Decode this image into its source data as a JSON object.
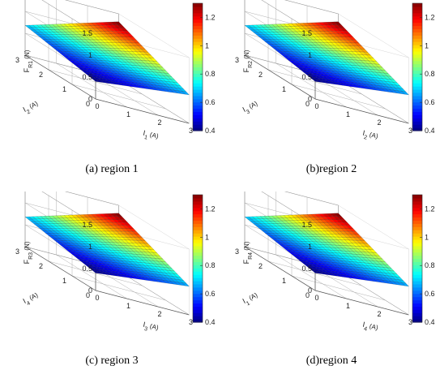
{
  "chart_data": [
    {
      "type": "surface",
      "caption": "(a) region 1",
      "zlabel": {
        "main": "F",
        "sub": "R1",
        "unit": " (N)"
      },
      "xlabel": {
        "main": "I",
        "sub": "1",
        "unit": " (A)"
      },
      "ylabel": {
        "main": "I",
        "sub": "2",
        "unit": " (A)"
      },
      "x_range": [
        0,
        3
      ],
      "y_range": [
        0,
        3
      ],
      "z_range": [
        0,
        1.5
      ],
      "x_ticks": [
        "0",
        "1",
        "2",
        "3"
      ],
      "y_ticks": [
        "0",
        "1",
        "2",
        "3"
      ],
      "z_ticks": [
        "0",
        "0.5",
        "1",
        "1.5"
      ],
      "corner_values": {
        "x0_y0": 0.4,
        "x3_y0": 0.65,
        "x0_y3": 0.68,
        "x3_y3": 1.32
      },
      "colorbar": {
        "range": [
          0.4,
          1.3
        ],
        "ticks": [
          "0.4",
          "0.6",
          "0.8",
          "1",
          "1.2"
        ],
        "colormap": "jet"
      },
      "grid": true
    },
    {
      "type": "surface",
      "caption": "(b)region 2",
      "zlabel": {
        "main": "F",
        "sub": "R2",
        "unit": " (N)"
      },
      "xlabel": {
        "main": "I",
        "sub": "2",
        "unit": " (A)"
      },
      "ylabel": {
        "main": "I",
        "sub": "3",
        "unit": " (A)"
      },
      "x_range": [
        0,
        3
      ],
      "y_range": [
        0,
        3
      ],
      "z_range": [
        0,
        1.5
      ],
      "x_ticks": [
        "0",
        "1",
        "2",
        "3"
      ],
      "y_ticks": [
        "0",
        "1",
        "2",
        "3"
      ],
      "z_ticks": [
        "0",
        "0.5",
        "1",
        "1.5"
      ],
      "corner_values": {
        "x0_y0": 0.4,
        "x3_y0": 0.65,
        "x0_y3": 0.68,
        "x3_y3": 1.32
      },
      "colorbar": {
        "range": [
          0.4,
          1.3
        ],
        "ticks": [
          "0.4",
          "0.6",
          "0.8",
          "1",
          "1.2"
        ],
        "colormap": "jet"
      },
      "grid": true
    },
    {
      "type": "surface",
      "caption": "(c) region 3",
      "zlabel": {
        "main": "F",
        "sub": "R3",
        "unit": " (N)"
      },
      "xlabel": {
        "main": "I",
        "sub": "3",
        "unit": " (A)"
      },
      "ylabel": {
        "main": "I",
        "sub": "4",
        "unit": " (A)"
      },
      "x_range": [
        0,
        3
      ],
      "y_range": [
        0,
        3
      ],
      "z_range": [
        0,
        1.5
      ],
      "x_ticks": [
        "0",
        "1",
        "2",
        "3"
      ],
      "y_ticks": [
        "0",
        "1",
        "2",
        "3"
      ],
      "z_ticks": [
        "0",
        "0.5",
        "1",
        "1.5"
      ],
      "corner_values": {
        "x0_y0": 0.4,
        "x3_y0": 0.65,
        "x0_y3": 0.68,
        "x3_y3": 1.32
      },
      "colorbar": {
        "range": [
          0.4,
          1.3
        ],
        "ticks": [
          "0.4",
          "0.6",
          "0.8",
          "1",
          "1.2"
        ],
        "colormap": "jet"
      },
      "grid": true
    },
    {
      "type": "surface",
      "caption": "(d)region 4",
      "zlabel": {
        "main": "F",
        "sub": "R4",
        "unit": " (N)"
      },
      "xlabel": {
        "main": "I",
        "sub": "4",
        "unit": " (A)"
      },
      "ylabel": {
        "main": "I",
        "sub": "1",
        "unit": " (A)"
      },
      "x_range": [
        0,
        3
      ],
      "y_range": [
        0,
        3
      ],
      "z_range": [
        0,
        1.5
      ],
      "x_ticks": [
        "0",
        "1",
        "2",
        "3"
      ],
      "y_ticks": [
        "0",
        "1",
        "2",
        "3"
      ],
      "z_ticks": [
        "0",
        "0.5",
        "1",
        "1.5"
      ],
      "corner_values": {
        "x0_y0": 0.4,
        "x3_y0": 0.65,
        "x0_y3": 0.68,
        "x3_y3": 1.32
      },
      "colorbar": {
        "range": [
          0.4,
          1.3
        ],
        "ticks": [
          "0.4",
          "0.6",
          "0.8",
          "1",
          "1.2"
        ],
        "colormap": "jet"
      },
      "grid": true
    }
  ]
}
